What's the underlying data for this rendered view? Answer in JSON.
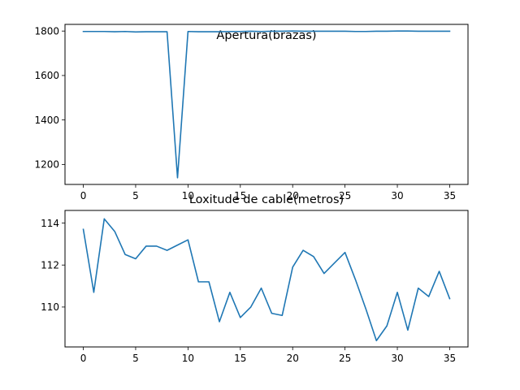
{
  "chart_data": [
    {
      "type": "line",
      "title": "Apertura(brazas)",
      "xlabel": "",
      "ylabel": "",
      "xlim": [
        -1.75,
        36.75
      ],
      "ylim": [
        1110,
        1830
      ],
      "xticks": [
        0,
        5,
        10,
        15,
        20,
        25,
        30,
        35
      ],
      "yticks": [
        1200,
        1400,
        1600,
        1800
      ],
      "grid": false,
      "series": [
        {
          "color": "#1f77b4",
          "x": [
            0,
            1,
            2,
            3,
            4,
            5,
            6,
            7,
            8,
            9,
            10,
            11,
            12,
            13,
            14,
            15,
            16,
            17,
            18,
            19,
            20,
            21,
            22,
            23,
            24,
            25,
            26,
            27,
            28,
            29,
            30,
            31,
            32,
            33,
            34,
            35
          ],
          "y": [
            1798,
            1798,
            1798,
            1797,
            1798,
            1796,
            1797,
            1797,
            1797,
            1140,
            1798,
            1797,
            1797,
            1797,
            1798,
            1798,
            1799,
            1798,
            1799,
            1799,
            1800,
            1799,
            1799,
            1799,
            1799,
            1799,
            1798,
            1798,
            1799,
            1799,
            1800,
            1800,
            1799,
            1799,
            1799,
            1799
          ]
        }
      ]
    },
    {
      "type": "line",
      "title": "Loxitude de cable(metros)",
      "xlabel": "",
      "ylabel": "",
      "xlim": [
        -1.75,
        36.75
      ],
      "ylim": [
        108.1,
        114.6
      ],
      "xticks": [
        0,
        5,
        10,
        15,
        20,
        25,
        30,
        35
      ],
      "yticks": [
        110,
        112,
        114
      ],
      "grid": false,
      "series": [
        {
          "color": "#1f77b4",
          "x": [
            0,
            1,
            2,
            3,
            4,
            5,
            6,
            7,
            8,
            9,
            10,
            11,
            12,
            13,
            14,
            15,
            16,
            17,
            18,
            19,
            20,
            21,
            22,
            23,
            24,
            25,
            26,
            27,
            28,
            29,
            30,
            31,
            32,
            33,
            34,
            35
          ],
          "y": [
            113.7,
            110.7,
            114.2,
            113.6,
            112.5,
            112.3,
            112.9,
            112.9,
            112.7,
            112.95,
            113.2,
            111.2,
            111.2,
            109.3,
            110.7,
            109.5,
            110.0,
            110.9,
            109.7,
            109.6,
            111.9,
            112.7,
            112.4,
            111.6,
            112.1,
            112.6,
            111.3,
            109.9,
            108.4,
            109.1,
            110.7,
            108.9,
            110.9,
            110.5,
            111.7,
            110.4
          ]
        }
      ]
    }
  ]
}
